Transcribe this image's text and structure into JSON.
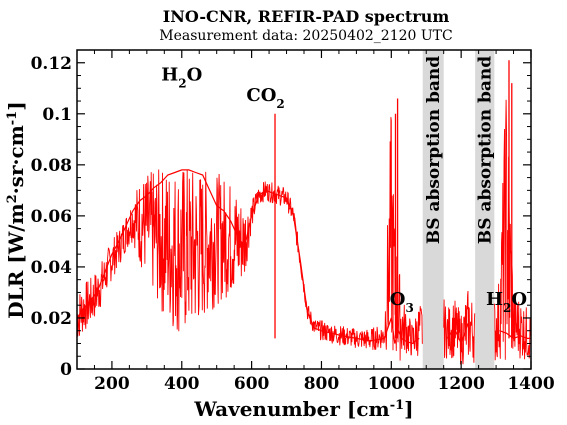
{
  "chart_data": {
    "type": "line",
    "title": "INO-CNR, REFIR-PAD spectrum",
    "subtitle": "Measurement data: 20250402_2120 UTC",
    "xlabel": "Wavenumber [cm^-1]",
    "ylabel": "DLR [W/m^2·sr·cm^-1]",
    "xlim": [
      100,
      1400
    ],
    "ylim": [
      0,
      0.125
    ],
    "x_ticks": [
      200,
      400,
      600,
      800,
      1000,
      1200,
      1400
    ],
    "y_ticks": [
      0,
      0.02,
      0.04,
      0.06,
      0.08,
      0.1,
      0.12
    ],
    "x_tick_labels": [
      "200",
      "400",
      "600",
      "800",
      "1000",
      "1200",
      "1400"
    ],
    "y_tick_labels": [
      "0",
      "0.02",
      "0.04",
      "0.06",
      "0.08",
      "0.1",
      "0.12"
    ],
    "grid": false,
    "series_color": "#ff0000",
    "band_color": "#d9d9d9",
    "annotations": [
      {
        "id": "h2o-left",
        "text": "H",
        "sub": "2",
        "tail": "O",
        "x": 400,
        "y": 0.113
      },
      {
        "id": "co2",
        "text": "CO",
        "sub": "2",
        "tail": "",
        "x": 640,
        "y": 0.105
      },
      {
        "id": "o3",
        "text": "O",
        "sub": "3",
        "tail": "",
        "x": 1030,
        "y": 0.025
      },
      {
        "id": "h2o-right",
        "text": "H",
        "sub": "2",
        "tail": "O",
        "x": 1330,
        "y": 0.025
      }
    ],
    "bands": [
      {
        "label": "BS absorption band",
        "x0": 1090,
        "x1": 1150
      },
      {
        "label": "BS absorption band",
        "x0": 1240,
        "x1": 1295
      }
    ],
    "series": [
      {
        "x": [
          100,
          120,
          140,
          160,
          180,
          200,
          220,
          240,
          260,
          280,
          300,
          320,
          340,
          360,
          380,
          400,
          420,
          440,
          460,
          480,
          500,
          520,
          540,
          560,
          580,
          600,
          620,
          640,
          660,
          680,
          700,
          720,
          740,
          760,
          780,
          800,
          830,
          860,
          900,
          940,
          980,
          1000,
          1010,
          1020,
          1030,
          1040,
          1060,
          1080,
          1090,
          1150,
          1160,
          1180,
          1200,
          1220,
          1240,
          1295,
          1310,
          1330,
          1350,
          1370,
          1390,
          1400
        ],
        "y": [
          0.02,
          0.024,
          0.027,
          0.031,
          0.038,
          0.045,
          0.05,
          0.056,
          0.062,
          0.066,
          0.068,
          0.071,
          0.073,
          0.076,
          0.077,
          0.078,
          0.078,
          0.077,
          0.076,
          0.07,
          0.064,
          0.062,
          0.058,
          0.052,
          0.048,
          0.06,
          0.068,
          0.07,
          0.069,
          0.068,
          0.067,
          0.06,
          0.042,
          0.022,
          0.016,
          0.015,
          0.014,
          0.013,
          0.012,
          0.011,
          0.012,
          0.02,
          0.01,
          0.015,
          0.012,
          0.011,
          0.01,
          0.012,
          0.012,
          0.015,
          0.012,
          0.016,
          0.01,
          0.018,
          0.013,
          0.014,
          0.015,
          0.014,
          0.012,
          0.013,
          0.012,
          0.012
        ],
        "envelope_low": [
          0.01,
          0.014,
          0.017,
          0.021,
          0.028,
          0.035,
          0.04,
          0.046,
          0.05,
          0.04,
          0.035,
          0.028,
          0.022,
          0.018,
          0.014,
          0.012,
          0.012,
          0.014,
          0.018,
          0.022,
          0.025,
          0.027,
          0.028,
          0.03,
          0.035,
          0.055,
          0.064,
          0.066,
          0.065,
          0.064,
          0.063,
          0.056,
          0.038,
          0.019,
          0.013,
          0.011,
          0.01,
          0.009,
          0.008,
          0.007,
          0.008,
          0.003,
          0.002,
          0.002,
          0.004,
          0.006,
          0.004,
          0.005,
          0.005,
          0.004,
          0.004,
          0.004,
          0.001,
          0.003,
          0.002,
          0.001,
          0.004,
          0.001,
          0.003,
          0.004,
          0.003,
          0.003
        ],
        "envelope_high": [
          0.03,
          0.034,
          0.036,
          0.04,
          0.045,
          0.051,
          0.055,
          0.061,
          0.068,
          0.075,
          0.077,
          0.078,
          0.079,
          0.08,
          0.08,
          0.081,
          0.08,
          0.079,
          0.079,
          0.078,
          0.077,
          0.076,
          0.074,
          0.07,
          0.065,
          0.066,
          0.072,
          0.074,
          0.073,
          0.072,
          0.071,
          0.064,
          0.046,
          0.026,
          0.02,
          0.019,
          0.018,
          0.017,
          0.016,
          0.016,
          0.018,
          0.106,
          0.058,
          0.044,
          0.03,
          0.025,
          0.018,
          0.026,
          0.026,
          0.028,
          0.024,
          0.028,
          0.022,
          0.032,
          0.026,
          0.028,
          0.037,
          0.121,
          0.032,
          0.028,
          0.024,
          0.022
        ]
      }
    ],
    "peaks": [
      {
        "x": 667,
        "y": 0.1
      },
      {
        "x": 1012,
        "y": 0.1
      },
      {
        "x": 1018,
        "y": 0.106
      },
      {
        "x": 1337,
        "y": 0.121
      },
      {
        "x": 1345,
        "y": 0.112
      }
    ]
  }
}
